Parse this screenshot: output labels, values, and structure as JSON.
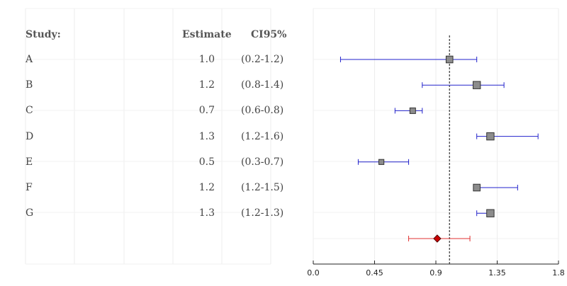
{
  "headers": {
    "study": "Study:",
    "estimate": "Estimate",
    "ci": "CI95%"
  },
  "rows": [
    {
      "study": "A",
      "estimate": "1.0",
      "ci": "(0.2-1.2)"
    },
    {
      "study": "B",
      "estimate": "1.2",
      "ci": "(0.8-1.4)"
    },
    {
      "study": "C",
      "estimate": "0.7",
      "ci": "(0.6-0.8)"
    },
    {
      "study": "D",
      "estimate": "1.3",
      "ci": "(1.2-1.6)"
    },
    {
      "study": "E",
      "estimate": "0.5",
      "ci": "(0.3-0.7)"
    },
    {
      "study": "F",
      "estimate": "1.2",
      "ci": "(1.2-1.5)"
    },
    {
      "study": "G",
      "estimate": "1.3",
      "ci": "(1.2-1.3)"
    }
  ],
  "chart_data": {
    "type": "forest",
    "xlim": [
      0,
      1.8
    ],
    "xticks": [
      0,
      0.45,
      0.9,
      1.35,
      1.8
    ],
    "xtick_labels": [
      "0.0",
      "0.45",
      "0.9",
      "1.35",
      "1.8"
    ],
    "reference_line": 1.0,
    "studies": [
      {
        "label": "A",
        "estimate": 1.0,
        "lower": 0.2,
        "upper": 1.2,
        "weight": 0.7
      },
      {
        "label": "B",
        "estimate": 1.2,
        "lower": 0.8,
        "upper": 1.4,
        "weight": 0.8
      },
      {
        "label": "C",
        "estimate": 0.73,
        "lower": 0.6,
        "upper": 0.8,
        "weight": 0.5
      },
      {
        "label": "D",
        "estimate": 1.3,
        "lower": 1.2,
        "upper": 1.65,
        "weight": 0.8
      },
      {
        "label": "E",
        "estimate": 0.5,
        "lower": 0.33,
        "upper": 0.7,
        "weight": 0.4
      },
      {
        "label": "F",
        "estimate": 1.2,
        "lower": 1.2,
        "upper": 1.5,
        "weight": 0.7
      },
      {
        "label": "G",
        "estimate": 1.3,
        "lower": 1.2,
        "upper": 1.3,
        "weight": 0.8
      }
    ],
    "summary": {
      "estimate": 0.91,
      "lower": 0.7,
      "upper": 1.15
    },
    "colors": {
      "ci_line": "#2222cc",
      "box_fill": "#8c8c8c",
      "box_stroke": "#333333",
      "summary_fill": "#cc0000",
      "summary_line": "#e03030",
      "ref_line": "#333333"
    }
  }
}
